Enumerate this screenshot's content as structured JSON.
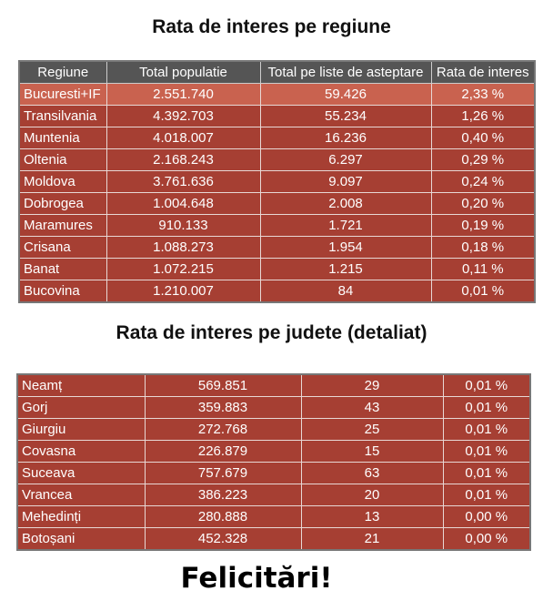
{
  "title": "Rata de interes pe regiune",
  "regions_table": {
    "header": [
      "Regiune",
      "Total populatie",
      "Total pe liste de asteptare",
      "Rata de interes"
    ],
    "rows": [
      [
        "Bucuresti+IF",
        "2.551.740",
        "59.426",
        "2,33 %"
      ],
      [
        "Transilvania",
        "4.392.703",
        "55.234",
        "1,26 %"
      ],
      [
        "Muntenia",
        "4.018.007",
        "16.236",
        "0,40 %"
      ],
      [
        "Oltenia",
        "2.168.243",
        "6.297",
        "0,29 %"
      ],
      [
        "Moldova",
        "3.761.636",
        "9.097",
        "0,24 %"
      ],
      [
        "Dobrogea",
        "1.004.648",
        "2.008",
        "0,20 %"
      ],
      [
        "Maramures",
        "910.133",
        "1.721",
        "0,19 %"
      ],
      [
        "Crisana",
        "1.088.273",
        "1.954",
        "0,18 %"
      ],
      [
        "Banat",
        "1.072.215",
        "1.215",
        "0,11 %"
      ],
      [
        "Bucovina",
        "1.210.007",
        "84",
        "0,01 %"
      ]
    ]
  },
  "subtitle": "Rata de interes pe judete (detaliat)",
  "counties_table": {
    "rows": [
      [
        "Neamț",
        "569.851",
        "29",
        "0,01 %"
      ],
      [
        "Gorj",
        "359.883",
        "43",
        "0,01 %"
      ],
      [
        "Giurgiu",
        "272.768",
        "25",
        "0,01 %"
      ],
      [
        "Covasna",
        "226.879",
        "15",
        "0,01 %"
      ],
      [
        "Suceava",
        "757.679",
        "63",
        "0,01 %"
      ],
      [
        "Vrancea",
        "386.223",
        "20",
        "0,01 %"
      ],
      [
        "Mehedinți",
        "280.888",
        "13",
        "0,00 %"
      ],
      [
        "Botoșani",
        "452.328",
        "21",
        "0,00 %"
      ]
    ]
  },
  "footer": "Felicitări!"
}
